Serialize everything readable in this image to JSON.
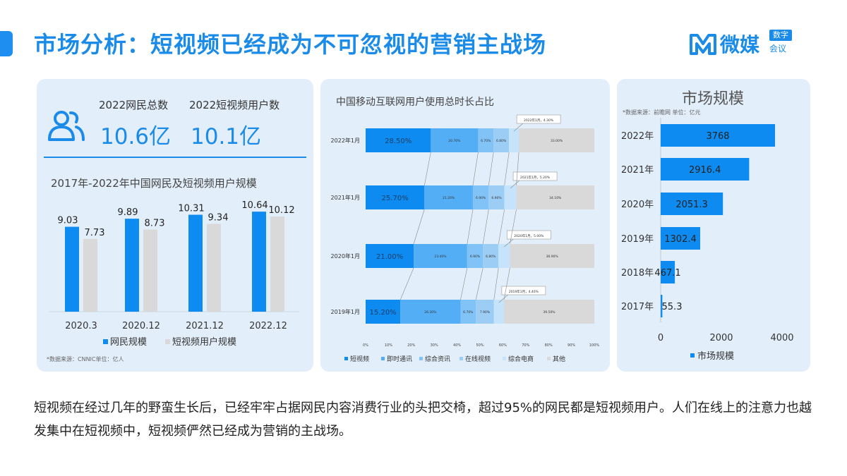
{
  "header": {
    "title": "市场分析：短视频已经成为不可忽视的营销主战场",
    "logo_text": "微媒",
    "logo_badge": "数字",
    "logo_sub": "会议"
  },
  "stats": {
    "netizen_label": "2022网民总数",
    "netizen_value": "10.6亿",
    "shortvideo_label": "2022短视频用户数",
    "shortvideo_value": "10.1亿"
  },
  "left_source": "*数据来源：CNNIC单位：亿人",
  "mid_chart_title": "中国移动互联网用户使用总时长占比",
  "summary": "短视频在经过几年的野蛮生长后，已经牢牢占据网民内容消费行业的头把交椅，超过95%的网民都是短视频用户。人们在线上的注意力也越发集中在短视频中，短视频俨然已经成为营销的主战场。",
  "colors": {
    "accent": "#1a8be8",
    "bar_primary": "#0d8bf0",
    "bar_gray": "#d9d9d9",
    "panel_bg": "#e2eef9"
  },
  "chart_data": [
    {
      "type": "bar",
      "title": "2017年-2022年中国网民及短视频用户规模",
      "categories": [
        "2020.3",
        "2020.12",
        "2021.12",
        "2022.12"
      ],
      "series": [
        {
          "name": "网民规模",
          "values": [
            9.03,
            9.89,
            10.31,
            10.64
          ],
          "labels": [
            "9.03",
            "9.89",
            "10.31",
            "10.64"
          ]
        },
        {
          "name": "短视频用户规模",
          "values": [
            7.73,
            8.73,
            9.34,
            10.12
          ],
          "labels": [
            "7.73",
            "8.73",
            "9.34",
            "10.12"
          ]
        }
      ],
      "ylim": [
        0,
        12
      ]
    },
    {
      "type": "bar",
      "orientation": "horizontal-stacked",
      "title": "中国移动互联网用户使用总时长占比",
      "categories": [
        "2022年1月",
        "2021年1月",
        "2020年1月",
        "2019年1月"
      ],
      "series": [
        {
          "name": "短视频",
          "values": [
            28.5,
            25.7,
            21.0,
            15.2
          ],
          "labels": [
            "28.50%",
            "25.70%",
            "21.00%",
            "15.20%"
          ]
        },
        {
          "name": "即时通讯",
          "values": [
            20.7,
            21.2,
            23.4,
            26.3
          ],
          "labels": [
            "20.70%",
            "21.20%",
            "23.40%",
            "26.30%"
          ]
        },
        {
          "name": "综合资讯",
          "values": [
            6.7,
            6.9,
            6.9,
            6.7
          ],
          "labels": [
            "6.70%",
            "6.90%",
            "6.90%",
            "6.70%"
          ]
        },
        {
          "name": "在线视频",
          "values": [
            6.8,
            6.9,
            6.8,
            7.9
          ],
          "labels": [
            "6.80%",
            "6.90%",
            "6.80%",
            "7.90%"
          ]
        },
        {
          "name": "综合电商",
          "values": [
            4.3,
            5.2,
            5.0,
            4.4
          ],
          "labels": [
            "2022年1月，4.30%",
            "2021年1月，5.20%",
            "2020年1月，5.00%",
            "2019年1月，4.40%"
          ]
        },
        {
          "name": "其他",
          "values": [
            33.0,
            34.1,
            36.9,
            39.5
          ],
          "labels": [
            "33.00%",
            "34.10%",
            "36.90%",
            "39.50%"
          ]
        }
      ],
      "xticks": [
        "0%",
        "10%",
        "20%",
        "30%",
        "40%",
        "50%",
        "60%",
        "70%",
        "80%",
        "90%",
        "100%"
      ],
      "xlim": [
        0,
        100
      ]
    },
    {
      "type": "bar",
      "orientation": "horizontal",
      "title": "市场规模",
      "subtitle": "*数据来源：前瞻网  单位：亿元",
      "categories": [
        "2022年",
        "2021年",
        "2020年",
        "2019年",
        "2018年",
        "2017年"
      ],
      "series": [
        {
          "name": "市场规模",
          "values": [
            3768,
            2916.4,
            2051.3,
            1302.4,
            467.1,
            55.3
          ],
          "labels": [
            "3768",
            "2916.4",
            "2051.3",
            "1302.4",
            "467.1",
            "55.3"
          ]
        }
      ],
      "xticks": [
        "0",
        "2000",
        "4000"
      ],
      "xlim": [
        0,
        4000
      ]
    }
  ]
}
